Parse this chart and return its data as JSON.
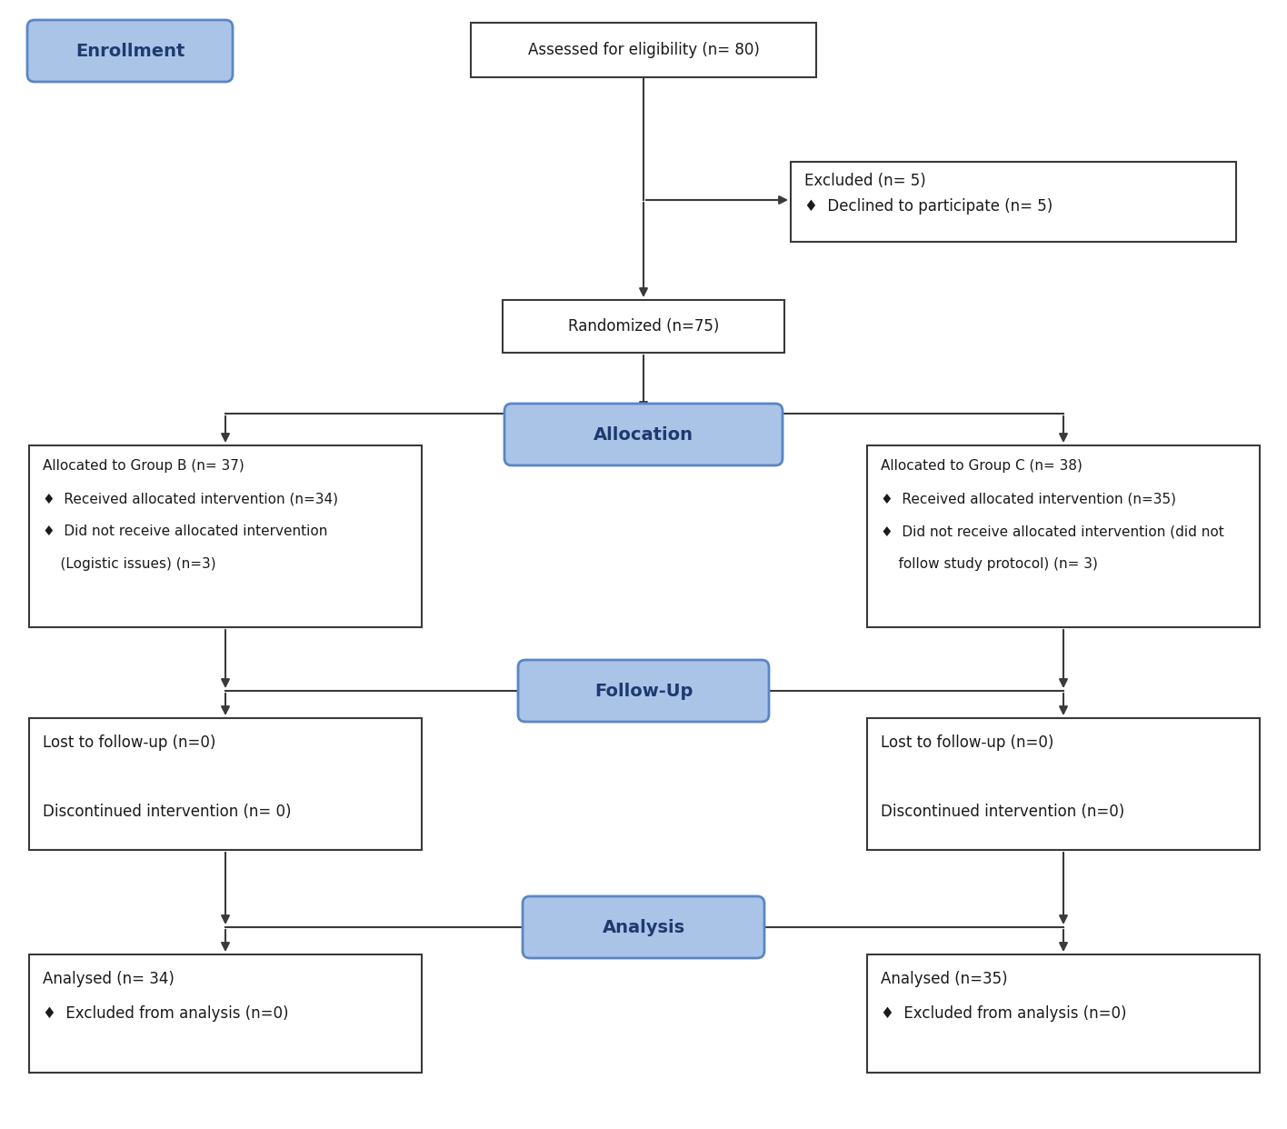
{
  "bg_color": "#ffffff",
  "box_edge_color": "#3a3a3a",
  "blue_fill": "#aac4e8",
  "blue_edge": "#5a86c5",
  "blue_text": "#1e3a6e",
  "box_fill": "#ffffff",
  "text_color": "#1a1a1a",
  "enrollment_label": "Enrollment",
  "assessed_text": "Assessed for eligibility (n= 80)",
  "excluded_title": "Excluded (n= 5)",
  "excluded_bullet": "♦  Declined to participate (n= 5)",
  "randomized_text": "Randomized (n=75)",
  "allocation_label": "Allocation",
  "group_b_lines": [
    "Allocated to Group B (n= 37)",
    "♦  Received allocated intervention (n=34)",
    "♦  Did not receive allocated intervention",
    "    (Logistic issues) (n=3)"
  ],
  "group_c_lines": [
    "Allocated to Group C (n= 38)",
    "♦  Received allocated intervention (n=35)",
    "♦  Did not receive allocated intervention (did not",
    "    follow study protocol) (n= 3)"
  ],
  "followup_label": "Follow-Up",
  "followup_b_lines": [
    "Lost to follow-up (n=0)",
    "",
    "Discontinued intervention (n= 0)"
  ],
  "followup_c_lines": [
    "Lost to follow-up (n=0)",
    "",
    "Discontinued intervention (n=0)"
  ],
  "analysis_label": "Analysis",
  "analysis_b_lines": [
    "Analysed (n= 34)",
    "♦  Excluded from analysis (n=0)"
  ],
  "analysis_c_lines": [
    "Analysed (n=35)",
    "♦  Excluded from analysis (n=0)"
  ]
}
